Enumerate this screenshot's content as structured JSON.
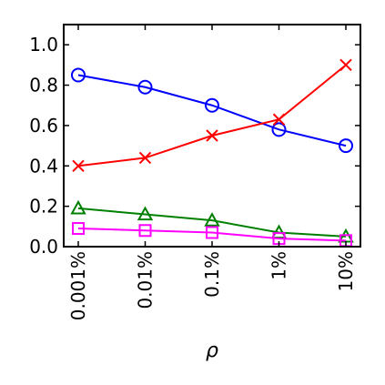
{
  "chart_data": {
    "type": "line",
    "title": "",
    "xlabel": "ρ",
    "ylabel": "",
    "categories": [
      "0.001%",
      "0.01%",
      "0.1%",
      "1%",
      "10%"
    ],
    "ylim": [
      0.0,
      1.1
    ],
    "yticks": [
      "0.0",
      "0.2",
      "0.4",
      "0.6",
      "0.8",
      "1.0"
    ],
    "grid": false,
    "legend": "none",
    "series": [
      {
        "values": [
          0.85,
          0.79,
          0.7,
          0.58,
          0.5
        ],
        "color": "#0000ff",
        "marker": "circle"
      },
      {
        "values": [
          0.4,
          0.44,
          0.55,
          0.63,
          0.9
        ],
        "color": "#ff0000",
        "marker": "x"
      },
      {
        "values": [
          0.19,
          0.16,
          0.13,
          0.07,
          0.05
        ],
        "color": "#008000",
        "marker": "triangle"
      },
      {
        "values": [
          0.09,
          0.08,
          0.07,
          0.04,
          0.03
        ],
        "color": "#ff00ff",
        "marker": "square"
      }
    ]
  }
}
